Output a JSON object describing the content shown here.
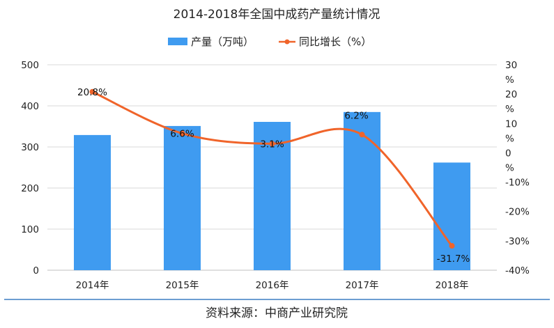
{
  "chart_data": {
    "type": "bar",
    "title": "2014-2018年全国中成药产量统计情况",
    "categories": [
      "2014年",
      "2015年",
      "2016年",
      "2017年",
      "2018年"
    ],
    "series": [
      {
        "name": "产量（万吨）",
        "type": "bar",
        "axis": "left",
        "values": [
          329,
          351,
          361,
          385,
          262
        ],
        "color": "#3F9BF0"
      },
      {
        "name": "同比增长（%）",
        "type": "line",
        "axis": "right",
        "values": [
          20.8,
          6.6,
          3.1,
          6.2,
          -31.7
        ],
        "labels": [
          "20.8%",
          "6.6%",
          "3.1%",
          "6.2%",
          "-31.7%"
        ],
        "color": "#F0642A"
      }
    ],
    "ylim_left": [
      0,
      500
    ],
    "yticks_left": [
      "0",
      "100",
      "200",
      "300",
      "400",
      "500"
    ],
    "ylim_right": [
      -40,
      30
    ],
    "yticks_right": [
      {
        "value": 30,
        "lines": [
          "30",
          "%"
        ]
      },
      {
        "value": 20,
        "lines": [
          "20",
          "%"
        ]
      },
      {
        "value": 10,
        "lines": [
          "10",
          "%"
        ]
      },
      {
        "value": 0,
        "lines": [
          "0",
          "%"
        ]
      },
      {
        "value": -10,
        "lines": [
          "-10%"
        ]
      },
      {
        "value": -20,
        "lines": [
          "-20%"
        ]
      },
      {
        "value": -30,
        "lines": [
          "-30%"
        ]
      },
      {
        "value": -40,
        "lines": [
          "-40%"
        ]
      }
    ],
    "grid": true,
    "legend_position": "top-center"
  },
  "source_text": "资料来源：中商产业研究院"
}
